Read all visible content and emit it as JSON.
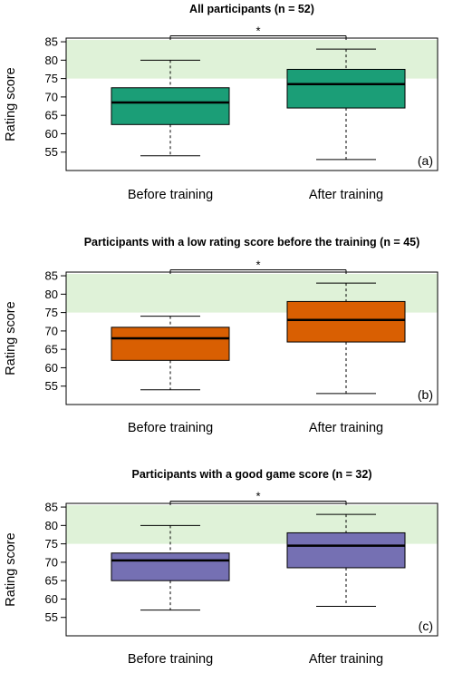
{
  "chart_data": [
    {
      "type": "box",
      "title": "All participants (n = 52)",
      "panel_tag": "(a)",
      "ylabel": "Rating score",
      "ylim": [
        50,
        86
      ],
      "yticks": [
        55,
        60,
        65,
        70,
        75,
        80,
        85
      ],
      "categories": [
        "Before training",
        "After training"
      ],
      "color": "#1b9e77",
      "highlight_band": [
        75,
        85.5
      ],
      "highlight_color": "#dff2d8",
      "significance": "*",
      "boxes": [
        {
          "whisker_low": 54,
          "q1": 62.5,
          "median": 68.5,
          "q3": 72.5,
          "whisker_high": 80
        },
        {
          "whisker_low": 53,
          "q1": 67,
          "median": 73.5,
          "q3": 77.5,
          "whisker_high": 83
        }
      ]
    },
    {
      "type": "box",
      "title": "Participants with a low rating score before the training (n = 45)",
      "panel_tag": "(b)",
      "ylabel": "Rating score",
      "ylim": [
        50,
        86
      ],
      "yticks": [
        55,
        60,
        65,
        70,
        75,
        80,
        85
      ],
      "categories": [
        "Before training",
        "After training"
      ],
      "color": "#d95f02",
      "highlight_band": [
        75,
        85.5
      ],
      "highlight_color": "#dff2d8",
      "significance": "*",
      "boxes": [
        {
          "whisker_low": 54,
          "q1": 62,
          "median": 68,
          "q3": 71,
          "whisker_high": 74
        },
        {
          "whisker_low": 53,
          "q1": 67,
          "median": 73,
          "q3": 78,
          "whisker_high": 83
        }
      ]
    },
    {
      "type": "box",
      "title": "Participants with a good game score (n = 32)",
      "panel_tag": "(c)",
      "ylabel": "Rating score",
      "ylim": [
        50,
        86
      ],
      "yticks": [
        55,
        60,
        65,
        70,
        75,
        80,
        85
      ],
      "categories": [
        "Before training",
        "After training"
      ],
      "color": "#7570b3",
      "highlight_band": [
        75,
        85.5
      ],
      "highlight_color": "#dff2d8",
      "significance": "*",
      "boxes": [
        {
          "whisker_low": 57,
          "q1": 65,
          "median": 70.5,
          "q3": 72.5,
          "whisker_high": 80
        },
        {
          "whisker_low": 58,
          "q1": 68.5,
          "median": 74.5,
          "q3": 78,
          "whisker_high": 83
        }
      ]
    }
  ]
}
